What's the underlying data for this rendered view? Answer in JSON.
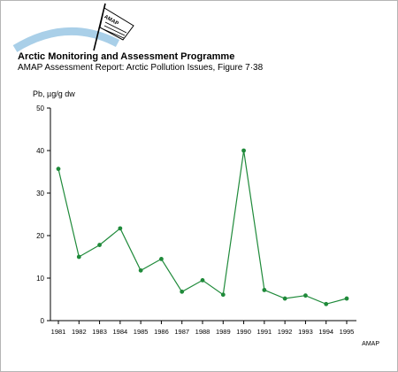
{
  "header": {
    "title": "Arctic Monitoring and Assessment Programme",
    "subtitle": "AMAP Assessment Report: Arctic Pollution Issues, Figure 7·38",
    "logo_text": "AMAP"
  },
  "footer": {
    "credit": "AMAP"
  },
  "colors": {
    "series": "#1f8a3a",
    "logo_arc": "#a9cfe8",
    "axis": "#000000"
  },
  "chart_data": {
    "type": "line",
    "title": "",
    "ylabel": "Pb, µg/g dw",
    "xlabel": "",
    "ylim": [
      0,
      50
    ],
    "yticks": [
      0,
      10,
      20,
      30,
      40,
      50
    ],
    "categories": [
      "1981",
      "1982",
      "1983",
      "1984",
      "1985",
      "1986",
      "1987",
      "1988",
      "1989",
      "1990",
      "1991",
      "1992",
      "1993",
      "1994",
      "1995"
    ],
    "series": [
      {
        "values": [
          35.7,
          15.0,
          17.8,
          21.7,
          11.8,
          14.5,
          6.8,
          9.5,
          6.1,
          40.0,
          7.2,
          5.2,
          5.9,
          3.9,
          5.2
        ]
      }
    ],
    "grid": false,
    "legend": "none"
  }
}
